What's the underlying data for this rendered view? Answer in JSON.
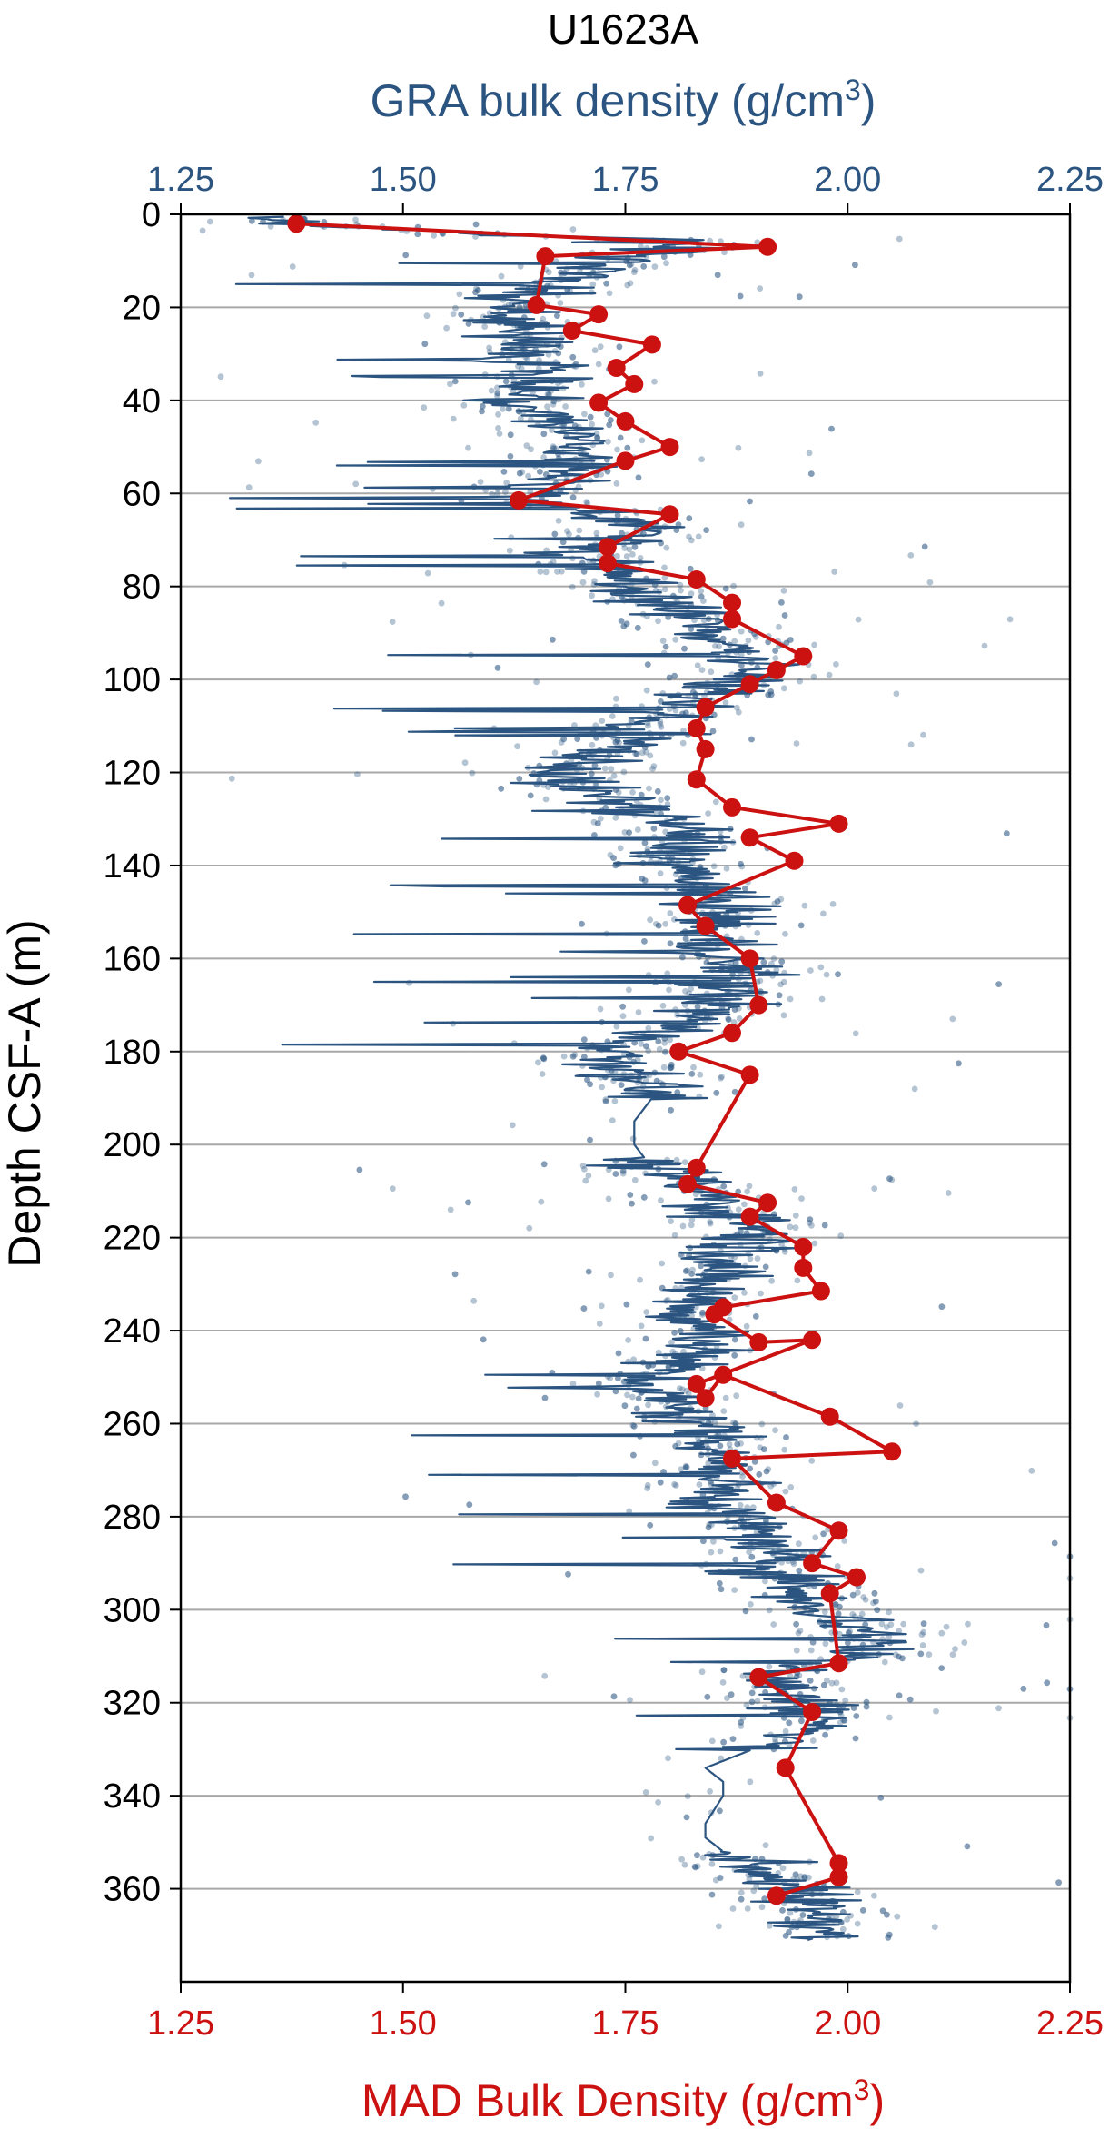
{
  "chart_data": {
    "type": "scatter",
    "title": "U1623A",
    "x_top_label_main": "GRA bulk density (g/cm",
    "x_top_label_sup": "3",
    "x_top_label_end": ")",
    "x_bottom_label_main": "MAD Bulk Density (g/cm",
    "x_bottom_label_sup": "3",
    "x_bottom_label_end": ")",
    "ylabel": "Depth CSF-A (m)",
    "xlim": [
      1.25,
      2.25
    ],
    "ylim": [
      0,
      380
    ],
    "y_inverted": true,
    "grid": "horizontal",
    "x_ticks": [
      "1.25",
      "1.50",
      "1.75",
      "2.00",
      "2.25"
    ],
    "y_ticks": [
      "0",
      "20",
      "40",
      "60",
      "80",
      "100",
      "120",
      "140",
      "160",
      "180",
      "200",
      "220",
      "240",
      "260",
      "280",
      "300",
      "320",
      "340",
      "360"
    ],
    "colors": {
      "gra": "#2b5580",
      "mad": "#cc1111",
      "grid": "#a8a8a8"
    },
    "series": [
      {
        "kind": "GRA bulk density (line + scatter)",
        "color": "#2b5580",
        "profile": [
          [
            0.5,
            1.35
          ],
          [
            2,
            1.38
          ],
          [
            4,
            1.56
          ],
          [
            6,
            1.87
          ],
          [
            8,
            1.8
          ],
          [
            10,
            1.72
          ],
          [
            13,
            1.7
          ],
          [
            16,
            1.64
          ],
          [
            19,
            1.64
          ],
          [
            22,
            1.6
          ],
          [
            25,
            1.63
          ],
          [
            28,
            1.66
          ],
          [
            31,
            1.64
          ],
          [
            34,
            1.66
          ],
          [
            37,
            1.65
          ],
          [
            40,
            1.62
          ],
          [
            43,
            1.66
          ],
          [
            46,
            1.68
          ],
          [
            49,
            1.7
          ],
          [
            52,
            1.69
          ],
          [
            55,
            1.7
          ],
          [
            58,
            1.68
          ],
          [
            61,
            1.63
          ],
          [
            64,
            1.72
          ],
          [
            67,
            1.78
          ],
          [
            70,
            1.74
          ],
          [
            73,
            1.7
          ],
          [
            76,
            1.72
          ],
          [
            79,
            1.76
          ],
          [
            82,
            1.78
          ],
          [
            85,
            1.8
          ],
          [
            88,
            1.84
          ],
          [
            91,
            1.86
          ],
          [
            94,
            1.88
          ],
          [
            97,
            1.89
          ],
          [
            100,
            1.88
          ],
          [
            103,
            1.85
          ],
          [
            106,
            1.82
          ],
          [
            109,
            1.76
          ],
          [
            112,
            1.76
          ],
          [
            115,
            1.74
          ],
          [
            118,
            1.7
          ],
          [
            121,
            1.68
          ],
          [
            124,
            1.7
          ],
          [
            127,
            1.76
          ],
          [
            130,
            1.8
          ],
          [
            133,
            1.82
          ],
          [
            136,
            1.82
          ],
          [
            139,
            1.8
          ],
          [
            142,
            1.82
          ],
          [
            145,
            1.84
          ],
          [
            148,
            1.86
          ],
          [
            151,
            1.86
          ],
          [
            154,
            1.84
          ],
          [
            157,
            1.85
          ],
          [
            160,
            1.86
          ],
          [
            163,
            1.88
          ],
          [
            166,
            1.86
          ],
          [
            169,
            1.86
          ],
          [
            172,
            1.84
          ],
          [
            175,
            1.8
          ],
          [
            178,
            1.76
          ],
          [
            181,
            1.74
          ],
          [
            184,
            1.76
          ],
          [
            187,
            1.78
          ],
          [
            190,
            1.78
          ],
          [
            195,
            1.76
          ],
          [
            200,
            1.76
          ],
          [
            205,
            1.78
          ],
          [
            208,
            1.82
          ],
          [
            211,
            1.84
          ],
          [
            214,
            1.86
          ],
          [
            217,
            1.9
          ],
          [
            220,
            1.9
          ],
          [
            223,
            1.88
          ],
          [
            226,
            1.86
          ],
          [
            229,
            1.84
          ],
          [
            232,
            1.84
          ],
          [
            235,
            1.83
          ],
          [
            238,
            1.82
          ],
          [
            241,
            1.86
          ],
          [
            244,
            1.84
          ],
          [
            247,
            1.8
          ],
          [
            250,
            1.78
          ],
          [
            253,
            1.78
          ],
          [
            256,
            1.8
          ],
          [
            259,
            1.82
          ],
          [
            262,
            1.86
          ],
          [
            265,
            1.86
          ],
          [
            268,
            1.86
          ],
          [
            271,
            1.86
          ],
          [
            274,
            1.86
          ],
          [
            277,
            1.86
          ],
          [
            280,
            1.87
          ],
          [
            283,
            1.9
          ],
          [
            286,
            1.9
          ],
          [
            289,
            1.92
          ],
          [
            292,
            1.92
          ],
          [
            295,
            1.94
          ],
          [
            298,
            1.96
          ],
          [
            301,
            1.98
          ],
          [
            304,
            2.02
          ],
          [
            307,
            2.03
          ],
          [
            310,
            2.01
          ],
          [
            313,
            1.94
          ],
          [
            316,
            1.92
          ],
          [
            319,
            1.94
          ],
          [
            322,
            1.96
          ],
          [
            325,
            1.97
          ],
          [
            328,
            1.92
          ],
          [
            331,
            1.88
          ],
          [
            334,
            1.84
          ],
          [
            337,
            1.86
          ],
          [
            340,
            1.86
          ],
          [
            343,
            1.85
          ],
          [
            346,
            1.84
          ],
          [
            349,
            1.84
          ],
          [
            352,
            1.86
          ],
          [
            355,
            1.9
          ],
          [
            358,
            1.92
          ],
          [
            361,
            1.94
          ],
          [
            364,
            1.96
          ],
          [
            367,
            1.98
          ],
          [
            370,
            1.98
          ]
        ]
      },
      {
        "name": "",
        "kind": "MAD Bulk Density",
        "color": "#cc1111",
        "points": [
          [
            1.38,
            2
          ],
          [
            1.91,
            7
          ],
          [
            1.66,
            9
          ],
          [
            1.65,
            19.5
          ],
          [
            1.72,
            21.5
          ],
          [
            1.69,
            25
          ],
          [
            1.78,
            28
          ],
          [
            1.74,
            33
          ],
          [
            1.76,
            36.5
          ],
          [
            1.72,
            40.5
          ],
          [
            1.75,
            44.5
          ],
          [
            1.8,
            50
          ],
          [
            1.75,
            53
          ],
          [
            1.63,
            61.5
          ],
          [
            1.8,
            64.5
          ],
          [
            1.73,
            71.5
          ],
          [
            1.73,
            75
          ],
          [
            1.83,
            78.5
          ],
          [
            1.87,
            83.5
          ],
          [
            1.87,
            87
          ],
          [
            1.95,
            95
          ],
          [
            1.92,
            98
          ],
          [
            1.89,
            101
          ],
          [
            1.84,
            106
          ],
          [
            1.83,
            110.5
          ],
          [
            1.84,
            115
          ],
          [
            1.83,
            121.5
          ],
          [
            1.87,
            127.5
          ],
          [
            1.99,
            131
          ],
          [
            1.89,
            134
          ],
          [
            1.94,
            139
          ],
          [
            1.82,
            148.5
          ],
          [
            1.84,
            153
          ],
          [
            1.89,
            160
          ],
          [
            1.9,
            170
          ],
          [
            1.87,
            176
          ],
          [
            1.81,
            180
          ],
          [
            1.89,
            185
          ],
          [
            1.83,
            205
          ],
          [
            1.82,
            208.5
          ],
          [
            1.91,
            212.5
          ],
          [
            1.89,
            215.5
          ],
          [
            1.95,
            222
          ],
          [
            1.95,
            226.5
          ],
          [
            1.97,
            231.5
          ],
          [
            1.86,
            235
          ],
          [
            1.85,
            236.5
          ],
          [
            1.9,
            242.5
          ],
          [
            1.96,
            242
          ],
          [
            1.83,
            251.5
          ],
          [
            1.84,
            254.5
          ],
          [
            1.86,
            249.5
          ],
          [
            1.98,
            258.5
          ],
          [
            2.05,
            266
          ],
          [
            1.87,
            267.5
          ],
          [
            1.92,
            277
          ],
          [
            1.99,
            283
          ],
          [
            1.96,
            290
          ],
          [
            2.01,
            293
          ],
          [
            1.98,
            296.5
          ],
          [
            1.99,
            311.5
          ],
          [
            1.9,
            314.5
          ],
          [
            1.96,
            322
          ],
          [
            1.93,
            334
          ],
          [
            1.99,
            354.5
          ],
          [
            1.99,
            357.5
          ],
          [
            1.92,
            361.5
          ]
        ]
      }
    ]
  }
}
